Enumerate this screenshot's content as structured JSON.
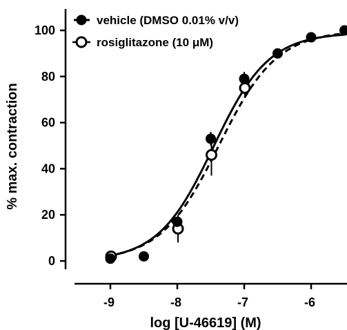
{
  "chart_data": {
    "type": "scatter",
    "xlabel": "log [U-46619] (M)",
    "ylabel": "% max. contraction",
    "xlim": [
      -9.2,
      -5.5
    ],
    "ylim": [
      0,
      102
    ],
    "x_ticks": [
      "-9",
      "-8",
      "-7",
      "-6"
    ],
    "y_ticks": [
      "0",
      "20",
      "40",
      "60",
      "80",
      "100"
    ],
    "legend_position": "top-left",
    "grid": false,
    "series": [
      {
        "name": "vehicle (DMSO 0.01% v/v)",
        "marker": "filled-circle",
        "line": "solid",
        "color": "#000000",
        "x": [
          -9,
          -8.5,
          -8,
          -7.5,
          -7,
          -6.5,
          -6,
          -5.5
        ],
        "y": [
          1,
          2,
          17,
          53,
          79,
          90,
          97,
          100
        ],
        "err": [
          0,
          0,
          0,
          3,
          3,
          0,
          0,
          0
        ],
        "fit": {
          "bottom": 0,
          "top": 99,
          "logEC50": -7.46,
          "hill": 1.05
        }
      },
      {
        "name": "rosiglitazone (10 μM)",
        "marker": "open-circle",
        "line": "dashed",
        "color": "#000000",
        "x": [
          -9,
          -8,
          -7.5,
          -7
        ],
        "y": [
          2,
          14,
          46,
          75
        ],
        "err": [
          0,
          6,
          9,
          4
        ],
        "fit": {
          "bottom": 0,
          "top": 100,
          "logEC50": -7.38,
          "hill": 1.0
        }
      }
    ]
  }
}
